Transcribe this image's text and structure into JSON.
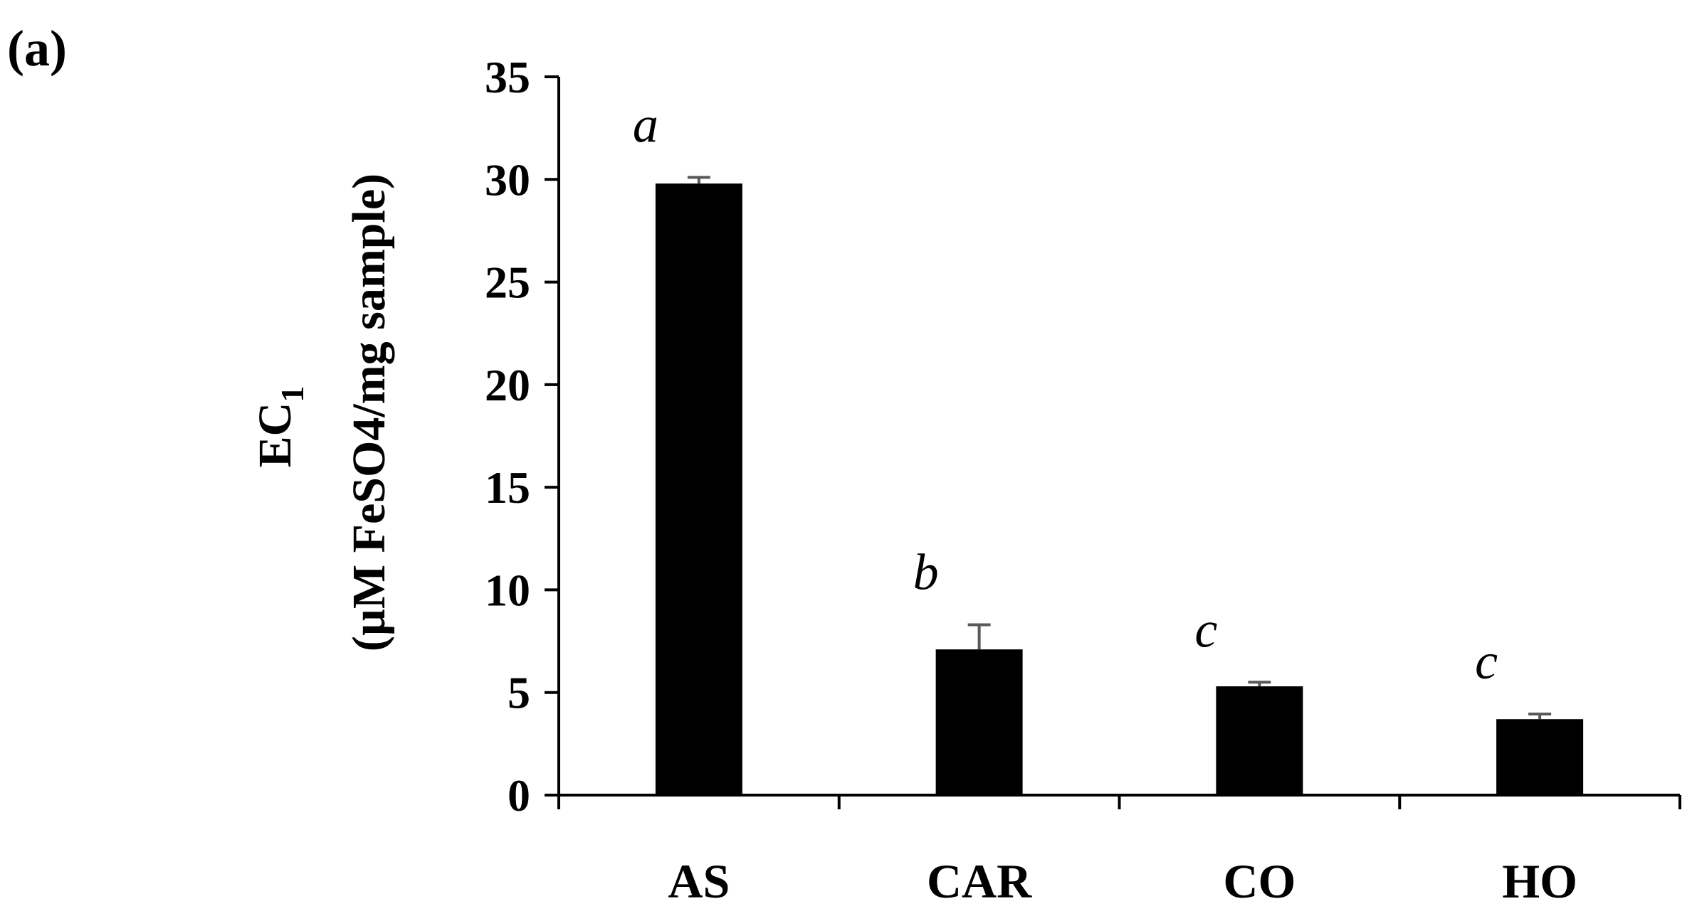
{
  "panel_label": "(a)",
  "chart_data": {
    "type": "bar",
    "categories": [
      "AS",
      "CAR",
      "CO",
      "HO"
    ],
    "values": [
      29.8,
      7.1,
      5.3,
      3.7
    ],
    "errors": [
      0.3,
      1.2,
      0.2,
      0.25
    ],
    "significance": [
      "a",
      "b",
      "c",
      "c"
    ],
    "ylabel_main": "EC",
    "ylabel_subscript": "1",
    "ylabel_units": "(µM FeSO4/mg sample)",
    "ylim": [
      0,
      35
    ],
    "yticks": [
      "0",
      "5",
      "10",
      "15",
      "20",
      "25",
      "30",
      "35"
    ],
    "grid": false,
    "bar_color": "#000000",
    "error_bar_color": "#595959"
  }
}
